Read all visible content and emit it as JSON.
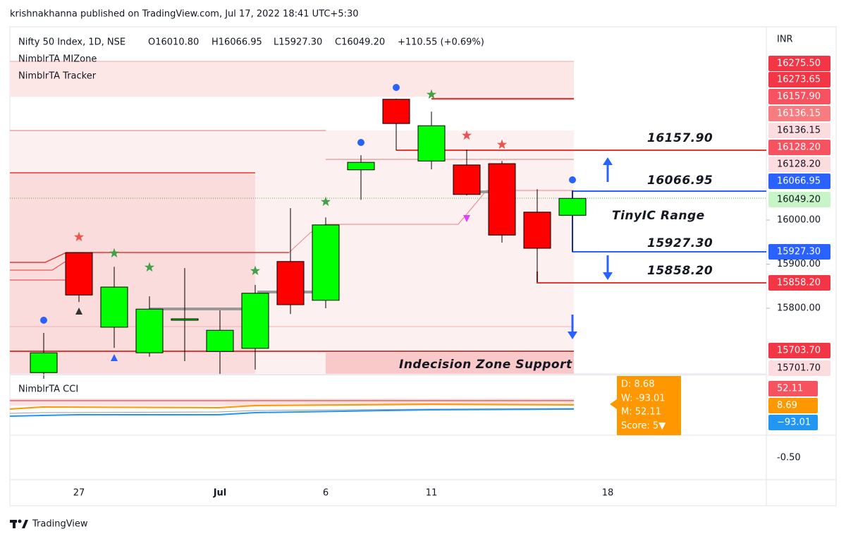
{
  "header": "krishnakhanna published on TradingView.com, Jul 17, 2022 18:41 UTC+5:30",
  "legend": {
    "symbol": "Nifty 50 Index, 1D, NSE",
    "open": "O16010.80",
    "high": "H16066.95",
    "low": "L15927.30",
    "close": "C16049.20",
    "change": "+110.55 (+0.69%)",
    "indicators": [
      "NimblrTA MIZone",
      "NimblrTA Tracker"
    ]
  },
  "currency": "INR",
  "chart_data": {
    "type": "candlestick",
    "categories": [
      null,
      "27",
      null,
      null,
      null,
      "Jul",
      null,
      null,
      "6",
      null,
      null,
      "11",
      null,
      null,
      null,
      null,
      "18"
    ],
    "open": [
      15654,
      15926,
      15757,
      15699,
      15774,
      15702,
      15709,
      15906,
      15818,
      16114,
      16274,
      16134,
      16125,
      16128,
      16018,
      16010.8,
      null
    ],
    "high": [
      15744,
      15927,
      15894,
      15827,
      15891,
      15795,
      15853,
      16027,
      16006,
      16147,
      16275.5,
      16246,
      16160,
      16134,
      16070,
      16066.95,
      null
    ],
    "low": [
      15640,
      15814,
      15710,
      15690,
      15680,
      15651,
      15661,
      15787,
      15800,
      16046,
      16158,
      16115,
      16056,
      15949,
      15859,
      15927.3,
      null
    ],
    "close": [
      15699,
      15830,
      15848,
      15798,
      15776,
      15750,
      15834,
      15808,
      15989,
      16131,
      16219,
      16214,
      16058,
      15966,
      15936,
      16049.2,
      null
    ],
    "up_color": "#00ff00",
    "down_color": "#ff0000",
    "ylim": [
      15651.2,
      16438.4
    ],
    "yticks": [
      {
        "value": 16000,
        "label": "16000.00"
      },
      {
        "value": 15900,
        "label": "15900.00"
      },
      {
        "value": 15800,
        "label": "15800.00"
      }
    ],
    "price_tags": [
      {
        "value": 16275.5,
        "label": "16275.50",
        "color": "#f23645"
      },
      {
        "value": 16273.65,
        "label": "16273.65",
        "color": "#f23645"
      },
      {
        "value": 16157.9,
        "label": "16157.90",
        "color": "#f7525f"
      },
      {
        "value": 16136.15,
        "label": "16136.15",
        "color": "#f77c80"
      },
      {
        "value": 16136.15,
        "label": "16136.15",
        "color": "#fcdcde"
      },
      {
        "value": 16128.2,
        "label": "16128.20",
        "color": "#f7525f"
      },
      {
        "value": 16128.2,
        "label": "16128.20",
        "color": "#fcdcde"
      },
      {
        "value": 16066.95,
        "label": "16066.95",
        "color": "#2962ff"
      },
      {
        "value": 16049.2,
        "label": "16049.20",
        "color": "#c8f5c8"
      },
      {
        "value": 15927.3,
        "label": "15927.30",
        "color": "#2962ff"
      },
      {
        "value": 15858.2,
        "label": "15858.20",
        "color": "#f23645"
      },
      {
        "value": 15703.7,
        "label": "15703.70",
        "color": "#f23645"
      },
      {
        "value": 15701.7,
        "label": "15701.70",
        "color": "#fcdcde"
      }
    ],
    "annotations": [
      "16157.90",
      "16066.95",
      "TinyIC Range",
      "15927.30",
      "15858.20",
      "Indecision Zone Support"
    ]
  },
  "cci": {
    "title": "NimblrTA CCI",
    "tooltip": [
      "D:  8.68",
      "W:  -93.01",
      "M:  52.11",
      "Score: 5▼"
    ],
    "tags": [
      {
        "label": "52.11",
        "color": "#f7525f"
      },
      {
        "label": "8.69",
        "color": "#ff9800"
      },
      {
        "label": "−93.01",
        "color": "#2196f3"
      }
    ],
    "axis_label": "-0.50"
  },
  "footer": "TradingView"
}
